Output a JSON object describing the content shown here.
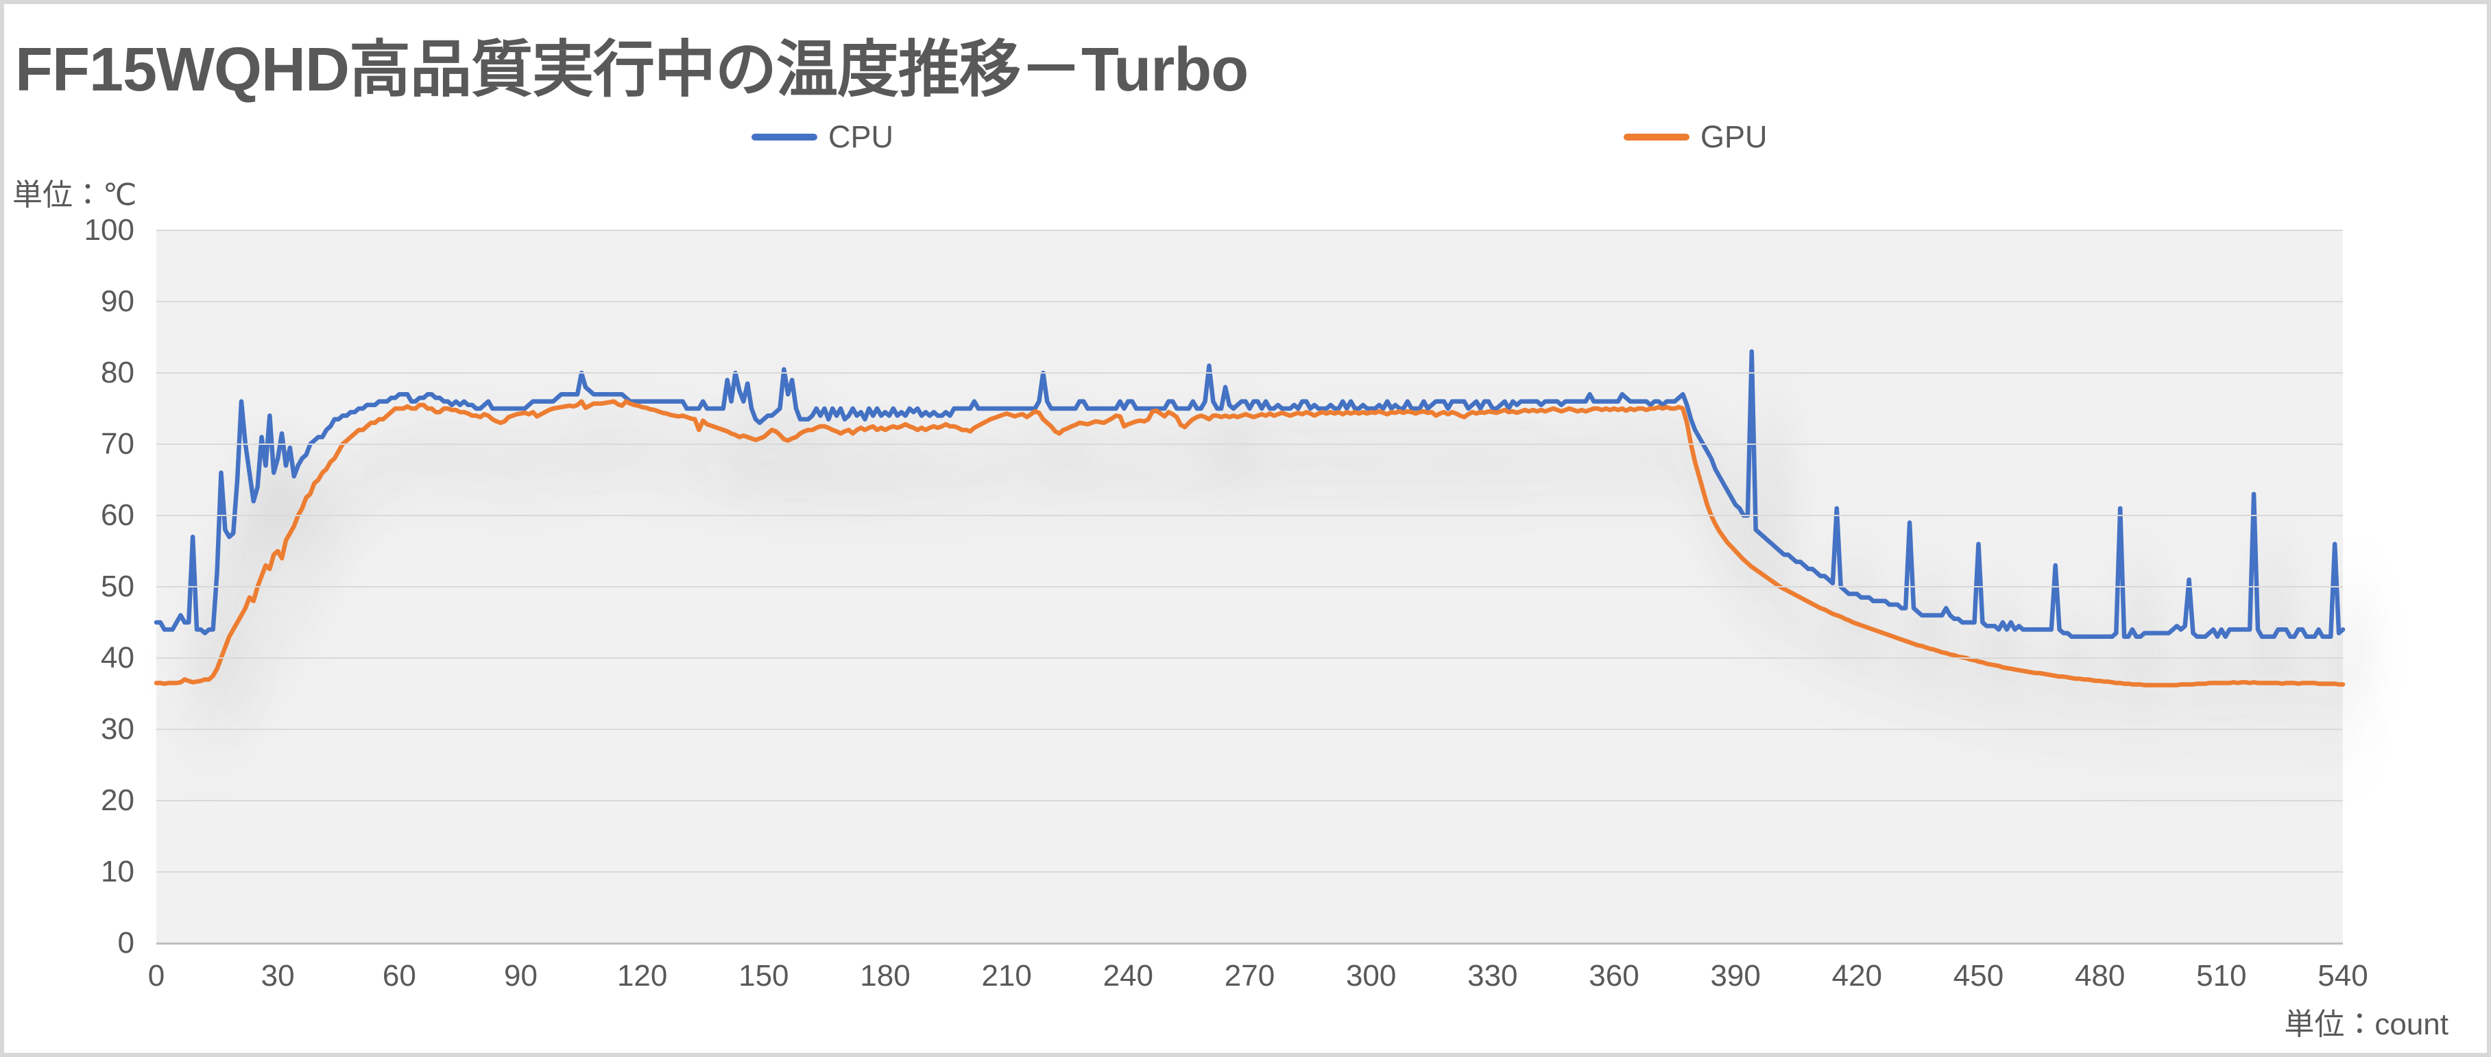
{
  "title": {
    "text": "FF15WQHD高品質実行中の温度推移－Turbo"
  },
  "unit_labels": {
    "y_axis": "単位：℃",
    "x_axis": "単位：count"
  },
  "legend": {
    "position": "top",
    "items": [
      {
        "label": "CPU",
        "color": "#4472C4"
      },
      {
        "label": "GPU",
        "color": "#ED7D31"
      }
    ]
  },
  "colors": {
    "cpu_line": "#4472C4",
    "gpu_line": "#ED7D31",
    "plot_background": "#F1F1F1",
    "gridline": "#D9D9D9",
    "text": "#595959",
    "page_border": "#D8D8D8"
  },
  "chart_data": {
    "type": "line",
    "title": "FF15WQHD高品質実行中の温度推移－Turbo",
    "xlabel": "単位：count",
    "ylabel": "単位：℃",
    "xlim": [
      0,
      540
    ],
    "ylim": [
      0,
      100
    ],
    "x_ticks": [
      0,
      30,
      60,
      90,
      120,
      150,
      180,
      210,
      240,
      270,
      300,
      330,
      360,
      390,
      420,
      450,
      480,
      510,
      540
    ],
    "y_ticks": [
      0,
      10,
      20,
      30,
      40,
      50,
      60,
      70,
      80,
      90,
      100
    ],
    "grid": true,
    "legend_position": "top",
    "x_start": 0,
    "x_step": 1,
    "series": [
      {
        "name": "CPU",
        "color": "#4472C4",
        "values": [
          45,
          45,
          44,
          44,
          44,
          45,
          46,
          45,
          45,
          57,
          44,
          44,
          43.5,
          44,
          44,
          52,
          66,
          58,
          57,
          57.5,
          65,
          76,
          70,
          66,
          62,
          64,
          71,
          67,
          74,
          66,
          68,
          71.5,
          67,
          69.5,
          65.5,
          67,
          68,
          68.5,
          70,
          70.5,
          71,
          71,
          72,
          72.5,
          73.5,
          73.5,
          74,
          74,
          74.5,
          74.5,
          75,
          75,
          75.5,
          75.5,
          75.5,
          76,
          76,
          76,
          76.5,
          76.5,
          77,
          77,
          77,
          76,
          76,
          76.5,
          76.5,
          77,
          77,
          76.5,
          76.5,
          76,
          76,
          75.5,
          76,
          75.5,
          76,
          75.5,
          75.5,
          75,
          75,
          75.5,
          76,
          75,
          75,
          75,
          75,
          75,
          75,
          75,
          75,
          75,
          75.5,
          76,
          76,
          76,
          76,
          76,
          76,
          76.5,
          77,
          77,
          77,
          77,
          77,
          80,
          78,
          77.5,
          77,
          77,
          77,
          77,
          77,
          77,
          77,
          77,
          76.5,
          76,
          76,
          76,
          76,
          76,
          76,
          76,
          76,
          76,
          76,
          76,
          76,
          76,
          76,
          75,
          75,
          75,
          75,
          76,
          75,
          75,
          75,
          75,
          75,
          79,
          76,
          80,
          77.5,
          76,
          78.5,
          75,
          73.5,
          73,
          73.5,
          74,
          74,
          74.5,
          75,
          80.5,
          77,
          79,
          75,
          73.5,
          73.5,
          73.5,
          74,
          75,
          74,
          75,
          73.5,
          75,
          74,
          75,
          73.5,
          74,
          75,
          74,
          74.5,
          73.5,
          75,
          74,
          75,
          74,
          74.5,
          74,
          75,
          74,
          74.5,
          74,
          75,
          74.5,
          75,
          74,
          74.5,
          74,
          74.5,
          74,
          74,
          74.5,
          74,
          75,
          75,
          75,
          75,
          75,
          76,
          75,
          75,
          75,
          75,
          75,
          75,
          75,
          75,
          75,
          75,
          75,
          75,
          75,
          75,
          75,
          76,
          80,
          76,
          75,
          75,
          75,
          75,
          75,
          75,
          75,
          76,
          76,
          75,
          75,
          75,
          75,
          75,
          75,
          75,
          75,
          76,
          75,
          76,
          76,
          75,
          75,
          75,
          75,
          75,
          75,
          75,
          75,
          76,
          76,
          75,
          75,
          75,
          75,
          76,
          75,
          75,
          76,
          81,
          76,
          75,
          75,
          78,
          75.5,
          75,
          75.5,
          76,
          76,
          75,
          76,
          76,
          75,
          76,
          75,
          75,
          75.5,
          75,
          75,
          75,
          75.5,
          75,
          76,
          76,
          75,
          75.5,
          75,
          75,
          75,
          75.5,
          75,
          75,
          76,
          75,
          76,
          75,
          75,
          75.5,
          75,
          75,
          75,
          75.5,
          75,
          76,
          75,
          75.5,
          75,
          75,
          76,
          75,
          75,
          75,
          76,
          75,
          75.5,
          76,
          76,
          76,
          75,
          76,
          76,
          76,
          76,
          75,
          75.5,
          76,
          75,
          76,
          76,
          75,
          75,
          75.5,
          76,
          75,
          76,
          75.5,
          76,
          76,
          76,
          76,
          76,
          75.5,
          76,
          76,
          76,
          76,
          75.5,
          76,
          76,
          76,
          76,
          76,
          76,
          77,
          76,
          76,
          76,
          76,
          76,
          76,
          76,
          77,
          76.5,
          76,
          76,
          76,
          76,
          76,
          75.5,
          76,
          76,
          75.5,
          76,
          76,
          76,
          76.5,
          77,
          75.5,
          73.5,
          72,
          71,
          70,
          69,
          68,
          66.5,
          65.5,
          64.5,
          63.5,
          62.5,
          61.5,
          61,
          60,
          60,
          83,
          58,
          57.5,
          57,
          56.5,
          56,
          55.5,
          55,
          54.5,
          54.5,
          54,
          53.5,
          53.5,
          53,
          52.5,
          52.5,
          52,
          51.5,
          51.5,
          51,
          50.5,
          61,
          50,
          49.5,
          49,
          49,
          49,
          48.5,
          48.5,
          48.5,
          48,
          48,
          48,
          48,
          47.5,
          47.5,
          47.5,
          47,
          47,
          59,
          47,
          46.5,
          46,
          46,
          46,
          46,
          46,
          46,
          47,
          46,
          45.5,
          45.5,
          45,
          45,
          45,
          45,
          56,
          45,
          44.5,
          44.5,
          44.5,
          44,
          45,
          44,
          45,
          44,
          44.5,
          44,
          44,
          44,
          44,
          44,
          44,
          44,
          44,
          53,
          44,
          43.5,
          43.5,
          43,
          43,
          43,
          43,
          43,
          43,
          43,
          43,
          43,
          43,
          43,
          43.5,
          61,
          43,
          43,
          44,
          43,
          43,
          43.5,
          43.5,
          43.5,
          43.5,
          43.5,
          43.5,
          43.5,
          44,
          44.5,
          44,
          44.5,
          51,
          43.5,
          43,
          43,
          43,
          43.5,
          44,
          43,
          44,
          43,
          44,
          44,
          44,
          44,
          44,
          44,
          63,
          44,
          43,
          43,
          43,
          43,
          44,
          44,
          44,
          43,
          43,
          44,
          44,
          43,
          43,
          43,
          44,
          43,
          43,
          43,
          56,
          43.5,
          44
        ]
      },
      {
        "name": "GPU",
        "color": "#ED7D31",
        "values": [
          36.5,
          36.5,
          36.4,
          36.5,
          36.5,
          36.5,
          36.6,
          37,
          36.8,
          36.6,
          36.7,
          36.8,
          37,
          37,
          37.5,
          38.5,
          40,
          41.5,
          43,
          44,
          45,
          46,
          47,
          48.5,
          48,
          50,
          51.5,
          53,
          52.5,
          54.5,
          55,
          54,
          56.5,
          57.5,
          58.5,
          60,
          61,
          62.5,
          63,
          64.5,
          65,
          66,
          66.5,
          67.5,
          68,
          69,
          70,
          70.5,
          71,
          71.5,
          72,
          72,
          72.5,
          73,
          73,
          73.5,
          73.5,
          74,
          74.5,
          75,
          75,
          75,
          75.3,
          75,
          75,
          75.5,
          75.5,
          75,
          75,
          74.5,
          74.5,
          75,
          75,
          74.8,
          74.8,
          74.5,
          74.5,
          74.3,
          74,
          74,
          73.8,
          74.2,
          74,
          73.5,
          73.2,
          73,
          73.2,
          73.8,
          74,
          74.2,
          74.3,
          74.4,
          74.2,
          74.5,
          73.9,
          74.2,
          74.5,
          74.8,
          75,
          75.1,
          75.2,
          75.3,
          75.4,
          75.3,
          75.5,
          76,
          75.1,
          75.4,
          75.7,
          75.7,
          75.7,
          75.8,
          75.9,
          76,
          75.6,
          75.4,
          76,
          75.7,
          75.5,
          75.4,
          75.2,
          75.1,
          74.9,
          74.8,
          74.6,
          74.4,
          74.3,
          74.1,
          74,
          73.9,
          74,
          73.8,
          73.6,
          73.5,
          72,
          73.3,
          72.8,
          72.6,
          72.4,
          72.2,
          72,
          71.8,
          71.5,
          71.3,
          71,
          71.2,
          71,
          70.8,
          70.6,
          70.8,
          71,
          71.5,
          72,
          71.8,
          71.3,
          70.7,
          70.5,
          70.8,
          71,
          71.5,
          71.8,
          72,
          72,
          72.3,
          72.5,
          72.5,
          72.3,
          72,
          71.8,
          71.5,
          71.8,
          72,
          71.5,
          72,
          72.3,
          72,
          72.3,
          72.5,
          72,
          72.3,
          72,
          72.3,
          72.5,
          72.3,
          72.5,
          72.8,
          72.5,
          72.3,
          72,
          72.3,
          72,
          72.3,
          72.5,
          72.3,
          72.5,
          72.8,
          72.5,
          72.5,
          72.3,
          72,
          72,
          71.8,
          72.3,
          72.6,
          72.9,
          73.2,
          73.5,
          73.7,
          73.9,
          74.1,
          74.3,
          74.1,
          73.9,
          74.1,
          74.2,
          73.8,
          74.2,
          74.6,
          74.4,
          73.5,
          73,
          72.5,
          71.8,
          71.5,
          72,
          72.2,
          72.5,
          72.7,
          73,
          72.9,
          72.8,
          73,
          73.2,
          73.1,
          73,
          73.3,
          73.6,
          74,
          73.9,
          72.5,
          72.8,
          73,
          73.2,
          73.3,
          73.2,
          73.5,
          74.6,
          74.7,
          74.3,
          73.9,
          74.5,
          74.2,
          73.8,
          72.7,
          72.4,
          73,
          73.5,
          73.8,
          74,
          73.8,
          73.5,
          74,
          74,
          73.8,
          74,
          73.8,
          74,
          73.8,
          74,
          74.2,
          74,
          73.8,
          74,
          74.2,
          74,
          74.3,
          74,
          74.2,
          74.4,
          74.2,
          74,
          74.2,
          74.4,
          74.2,
          74.5,
          74.3,
          74,
          74.3,
          74.5,
          74.3,
          74.5,
          74.3,
          74.5,
          74.2,
          74.5,
          74.3,
          74.5,
          74.3,
          74.5,
          74.3,
          74.5,
          74.4,
          74.6,
          74.4,
          74.2,
          74.5,
          74.4,
          74.6,
          74.4,
          74.6,
          74.5,
          74.3,
          74.5,
          74.6,
          74.4,
          74.5,
          74,
          74.3,
          74.5,
          74.2,
          74.5,
          74.3,
          74,
          73.8,
          74.2,
          74.5,
          74.3,
          74.5,
          74.4,
          74.6,
          74.5,
          74.4,
          74.6,
          74.8,
          74.5,
          74.6,
          74.4,
          74.6,
          74.8,
          74.6,
          74.8,
          74.6,
          74.8,
          74.6,
          74.8,
          75,
          74.8,
          74.6,
          74.8,
          75,
          74.8,
          74.6,
          74.8,
          74.6,
          74.8,
          75,
          75,
          74.8,
          75,
          74.8,
          75,
          74.8,
          75,
          74.7,
          75,
          74.8,
          75,
          75,
          74.8,
          75,
          75,
          75.2,
          75,
          75.2,
          75,
          75,
          75.2,
          75,
          73,
          70,
          67.5,
          65.5,
          63.5,
          61.5,
          60,
          58.8,
          57.8,
          57,
          56.2,
          55.6,
          55,
          54.4,
          53.8,
          53.3,
          52.8,
          52.4,
          52,
          51.6,
          51.2,
          50.8,
          50.4,
          50,
          49.7,
          49.4,
          49.1,
          48.8,
          48.5,
          48.2,
          47.9,
          47.6,
          47.3,
          47,
          46.8,
          46.5,
          46.2,
          46,
          45.8,
          45.5,
          45.3,
          45,
          44.8,
          44.6,
          44.4,
          44.2,
          44,
          43.8,
          43.6,
          43.4,
          43.2,
          43,
          42.8,
          42.6,
          42.4,
          42.2,
          42,
          41.8,
          41.7,
          41.5,
          41.3,
          41.2,
          41,
          40.8,
          40.7,
          40.5,
          40.4,
          40.2,
          40.1,
          40,
          39.8,
          39.7,
          39.5,
          39.4,
          39.2,
          39.1,
          39,
          38.9,
          38.7,
          38.6,
          38.5,
          38.4,
          38.3,
          38.2,
          38.1,
          38,
          37.9,
          37.9,
          37.8,
          37.7,
          37.6,
          37.5,
          37.4,
          37.4,
          37.3,
          37.2,
          37.1,
          37.1,
          37,
          37,
          36.9,
          36.8,
          36.8,
          36.7,
          36.7,
          36.6,
          36.5,
          36.5,
          36.4,
          36.4,
          36.3,
          36.3,
          36.3,
          36.2,
          36.2,
          36.2,
          36.2,
          36.2,
          36.2,
          36.2,
          36.2,
          36.2,
          36.3,
          36.3,
          36.3,
          36.3,
          36.4,
          36.4,
          36.4,
          36.5,
          36.5,
          36.5,
          36.5,
          36.5,
          36.5,
          36.6,
          36.5,
          36.6,
          36.6,
          36.5,
          36.6,
          36.5,
          36.5,
          36.5,
          36.5,
          36.5,
          36.5,
          36.4,
          36.5,
          36.5,
          36.5,
          36.4,
          36.5,
          36.5,
          36.5,
          36.5,
          36.4,
          36.4,
          36.4,
          36.4,
          36.4,
          36.3,
          36.3
        ]
      }
    ]
  }
}
